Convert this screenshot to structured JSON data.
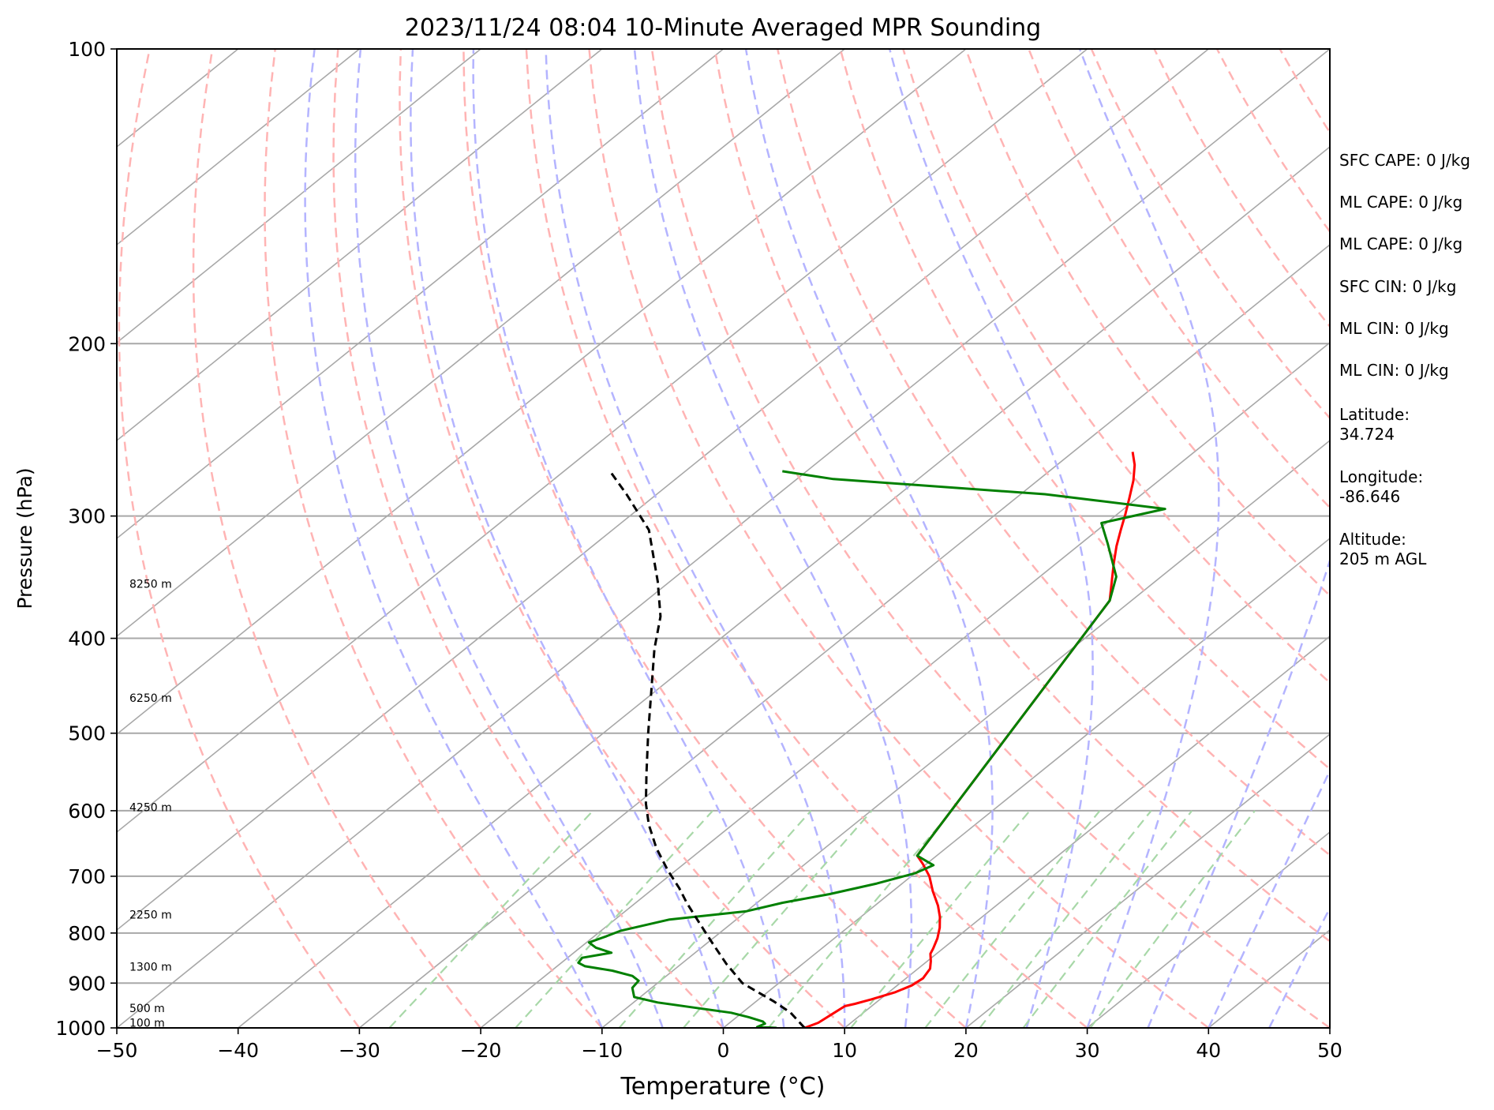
{
  "chart_data": {
    "type": "line",
    "title": "2023/11/24 08:04 10-Minute Averaged MPR Sounding",
    "xlabel": "Temperature (°C)",
    "ylabel": "Pressure (hPa)",
    "xlim": [
      -50,
      50
    ],
    "ylim": [
      1000,
      100
    ],
    "y_scale": "log",
    "grid": true,
    "x_ticks": [
      -50,
      -40,
      -30,
      -20,
      -10,
      0,
      10,
      20,
      30,
      40,
      50
    ],
    "x_tick_labels": [
      "−50",
      "−40",
      "−30",
      "−20",
      "−10",
      "0",
      "10",
      "20",
      "30",
      "40",
      "50"
    ],
    "y_ticks": [
      100,
      200,
      300,
      400,
      500,
      600,
      700,
      800,
      900,
      1000
    ],
    "y_tick_labels": [
      "100",
      "200",
      "300",
      "400",
      "500",
      "600",
      "700",
      "800",
      "900",
      "1000"
    ],
    "skew_factor": 1,
    "series": [
      {
        "color": "#ff0000",
        "points": [
          [
            6.7,
            1000
          ],
          [
            7.3,
            988
          ],
          [
            7.6,
            965
          ],
          [
            7.8,
            950
          ],
          [
            8.4,
            945
          ],
          [
            9.3,
            935
          ],
          [
            10.5,
            920
          ],
          [
            11.2,
            905
          ],
          [
            11.4,
            890
          ],
          [
            11.0,
            870
          ],
          [
            10.3,
            855
          ],
          [
            9.5,
            840
          ],
          [
            9.2,
            830
          ],
          [
            8.5,
            810
          ],
          [
            7.6,
            790
          ],
          [
            6.5,
            770
          ],
          [
            5.2,
            750
          ],
          [
            3.3,
            725
          ],
          [
            1.5,
            700
          ],
          [
            -0.3,
            680
          ],
          [
            -1.6,
            667
          ],
          [
            -11.8,
            366
          ],
          [
            -13.8,
            348
          ],
          [
            -15.3,
            335
          ],
          [
            -16.8,
            322
          ],
          [
            -18.1,
            310
          ],
          [
            -19.3,
            299
          ],
          [
            -20.6,
            288
          ],
          [
            -22.1,
            276
          ],
          [
            -23.6,
            266
          ],
          [
            -25.1,
            258
          ]
        ]
      },
      {
        "color": "#008000",
        "points": [
          [
            4.4,
            1000
          ],
          [
            2.7,
            998
          ],
          [
            3.0,
            990
          ],
          [
            2.6,
            985
          ],
          [
            1.0,
            975
          ],
          [
            -0.9,
            965
          ],
          [
            -4.0,
            955
          ],
          [
            -8.0,
            942
          ],
          [
            -10.5,
            930
          ],
          [
            -11.6,
            910
          ],
          [
            -11.8,
            895
          ],
          [
            -12.8,
            885
          ],
          [
            -15.0,
            874
          ],
          [
            -17.7,
            865
          ],
          [
            -18.6,
            858
          ],
          [
            -18.8,
            848
          ],
          [
            -16.9,
            838
          ],
          [
            -18.7,
            828
          ],
          [
            -19.8,
            818
          ],
          [
            -19.0,
            806
          ],
          [
            -18.4,
            796
          ],
          [
            -15.5,
            775
          ],
          [
            -10.0,
            760
          ],
          [
            -7.9,
            745
          ],
          [
            -4.9,
            730
          ],
          [
            -2.1,
            712
          ],
          [
            0.0,
            695
          ],
          [
            0.7,
            682
          ],
          [
            -1.6,
            667
          ],
          [
            -11.8,
            366
          ],
          [
            -13.7,
            346
          ],
          [
            -17.8,
            320
          ],
          [
            -20.4,
            305
          ],
          [
            -16.6,
            295
          ],
          [
            -28.0,
            285
          ],
          [
            -47.0,
            275
          ],
          [
            -52.0,
            270
          ]
        ]
      },
      {
        "color": "#000000",
        "dash": "10,6",
        "points": [
          [
            6.7,
            1000
          ],
          [
            4.0,
            965
          ],
          [
            1.5,
            940
          ],
          [
            -3.0,
            900
          ],
          [
            -6.3,
            860
          ],
          [
            -9.5,
            820
          ],
          [
            -12.8,
            780
          ],
          [
            -15.8,
            745
          ],
          [
            -17.9,
            720
          ],
          [
            -20.7,
            690
          ],
          [
            -23.9,
            655
          ],
          [
            -26.9,
            620
          ],
          [
            -29.3,
            590
          ],
          [
            -32.3,
            550
          ],
          [
            -36.3,
            500
          ],
          [
            -40.6,
            450
          ],
          [
            -44.4,
            410
          ],
          [
            -47.2,
            380
          ],
          [
            -51.0,
            350
          ],
          [
            -57.0,
            310
          ],
          [
            -62.5,
            285
          ],
          [
            -66.2,
            270
          ]
        ]
      }
    ],
    "height_labels": [
      {
        "text": "100 m",
        "p": 988
      },
      {
        "text": "500 m",
        "p": 955
      },
      {
        "text": "1300 m",
        "p": 866
      },
      {
        "text": "2250 m",
        "p": 766
      },
      {
        "text": "4250 m",
        "p": 595
      },
      {
        "text": "6250 m",
        "p": 460
      },
      {
        "text": "8250 m",
        "p": 352
      }
    ],
    "dry_adiabats_theta_c": [
      -30,
      -20,
      -10,
      0,
      10,
      20,
      30,
      40,
      50,
      60,
      70,
      80,
      90,
      100,
      110,
      120,
      130,
      140,
      150
    ],
    "moist_adiabats_start_c": [
      -10,
      -5,
      0,
      5,
      10,
      15,
      20,
      25,
      30,
      35,
      40,
      45
    ],
    "mixing_ratios_gkg": [
      0.4,
      1,
      2,
      3,
      5,
      8,
      12,
      16,
      20,
      28
    ]
  },
  "info_panel": {
    "sfc_cape": "SFC CAPE: 0 J/kg",
    "ml_cape_1": "ML CAPE: 0 J/kg",
    "ml_cape_2": "ML CAPE: 0 J/kg",
    "sfc_cin": "SFC CIN: 0 J/kg",
    "ml_cin_1": "ML CIN: 0 J/kg",
    "ml_cin_2": "ML CIN: 0 J/kg",
    "latitude_label": "Latitude:",
    "latitude_value": "34.724",
    "longitude_label": "Longitude:",
    "longitude_value": "-86.646",
    "altitude_label": "Altitude:",
    "altitude_value": "205 m AGL"
  },
  "colors": {
    "isotherm": "#a8a8a8",
    "dry_adiabat": "#ffb4b4",
    "moist_adiabat": "#b4b4ff",
    "mixing_ratio": "#a8d8a8"
  }
}
